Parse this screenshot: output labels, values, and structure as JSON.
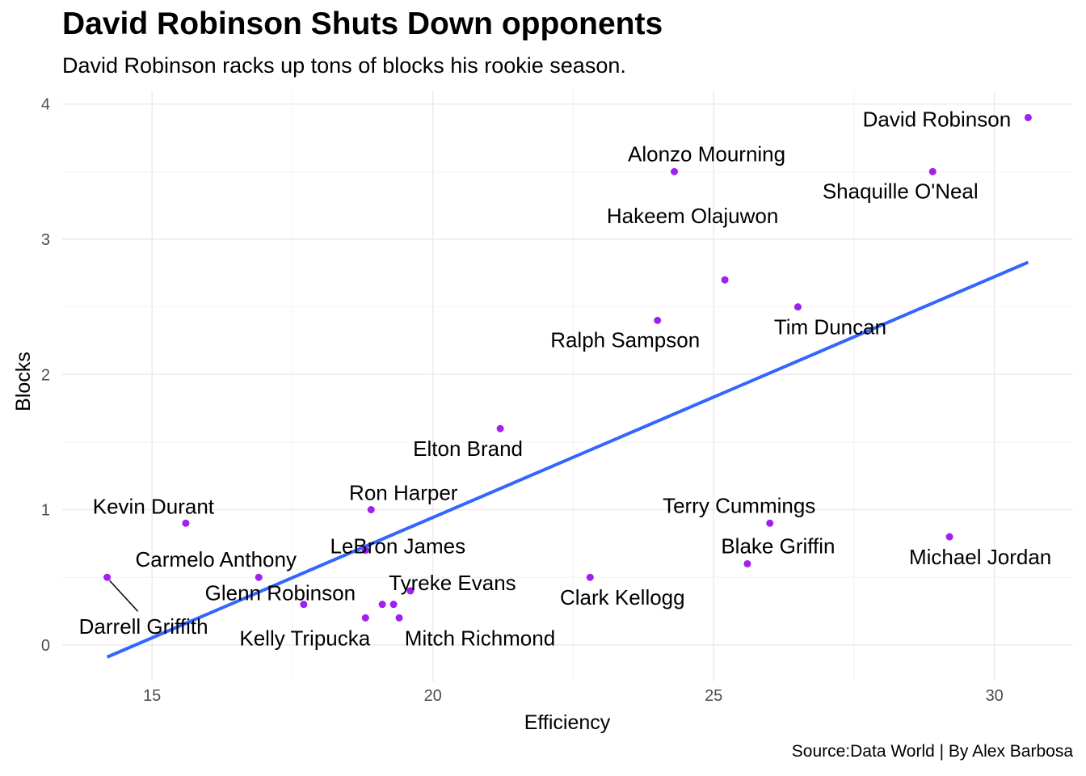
{
  "title": "David Robinson Shuts Down opponents",
  "subtitle": "David Robinson racks up tons of blocks his rookie season.",
  "caption": "Source:Data World | By Alex Barbosa",
  "chart_data": {
    "type": "scatter",
    "xlabel": "Efficiency",
    "ylabel": "Blocks",
    "xlim": [
      13.4,
      31.4
    ],
    "ylim": [
      -0.27,
      4.1
    ],
    "xticks": [
      15,
      20,
      25,
      30
    ],
    "yticks": [
      0,
      1,
      2,
      3,
      4
    ],
    "grid": true,
    "point_color": "#A020F0",
    "trend_color": "#3366FF",
    "trendline": {
      "x": [
        14.2,
        30.6
      ],
      "y": [
        -0.09,
        2.83
      ]
    },
    "points": [
      {
        "name": "David Robinson",
        "x": 30.6,
        "y": 3.9,
        "label": "David Robinson"
      },
      {
        "name": "Alonzo Mourning",
        "x": 24.3,
        "y": 3.5,
        "label": "Alonzo Mourning"
      },
      {
        "name": "Shaquille O'Neal",
        "x": 28.9,
        "y": 3.5,
        "label": "Shaquille O'Neal"
      },
      {
        "name": "Hakeem Olajuwon",
        "x": 25.2,
        "y": 2.7,
        "label": "Hakeem Olajuwon"
      },
      {
        "name": "Tim Duncan",
        "x": 26.5,
        "y": 2.5,
        "label": "Tim Duncan"
      },
      {
        "name": "Ralph Sampson",
        "x": 24.0,
        "y": 2.4,
        "label": "Ralph Sampson"
      },
      {
        "name": "Elton Brand",
        "x": 21.2,
        "y": 1.6,
        "label": "Elton Brand"
      },
      {
        "name": "Ron Harper",
        "x": 18.9,
        "y": 1.0,
        "label": "Ron Harper"
      },
      {
        "name": "Kevin Durant",
        "x": 15.6,
        "y": 0.9,
        "label": "Kevin Durant"
      },
      {
        "name": "Terry Cummings",
        "x": 26.0,
        "y": 0.9,
        "label": "Terry Cummings"
      },
      {
        "name": "Michael Jordan",
        "x": 29.2,
        "y": 0.8,
        "label": "Michael Jordan"
      },
      {
        "name": "LeBron James",
        "x": 18.8,
        "y": 0.7,
        "label": "LeBron James"
      },
      {
        "name": "Blake Griffin",
        "x": 25.6,
        "y": 0.6,
        "label": "Blake Griffin"
      },
      {
        "name": "Carmelo Anthony",
        "x": 16.9,
        "y": 0.5,
        "label": "Carmelo Anthony"
      },
      {
        "name": "Darrell Griffith",
        "x": 14.2,
        "y": 0.5,
        "label": "Darrell Griffith"
      },
      {
        "name": "Clark Kellogg",
        "x": 22.8,
        "y": 0.5,
        "label": "Clark Kellogg"
      },
      {
        "name": "Tyreke Evans",
        "x": 19.6,
        "y": 0.4,
        "label": "Tyreke Evans"
      },
      {
        "name": "Glenn Robinson",
        "x": 17.7,
        "y": 0.3,
        "label": "Glenn Robinson"
      },
      {
        "name": "Unlabeled A",
        "x": 19.1,
        "y": 0.3,
        "label": ""
      },
      {
        "name": "Unlabeled B",
        "x": 19.3,
        "y": 0.3,
        "label": ""
      },
      {
        "name": "Kelly Tripucka",
        "x": 18.8,
        "y": 0.2,
        "label": "Kelly Tripucka"
      },
      {
        "name": "Mitch Richmond",
        "x": 19.4,
        "y": 0.2,
        "label": "Mitch Richmond"
      }
    ]
  }
}
